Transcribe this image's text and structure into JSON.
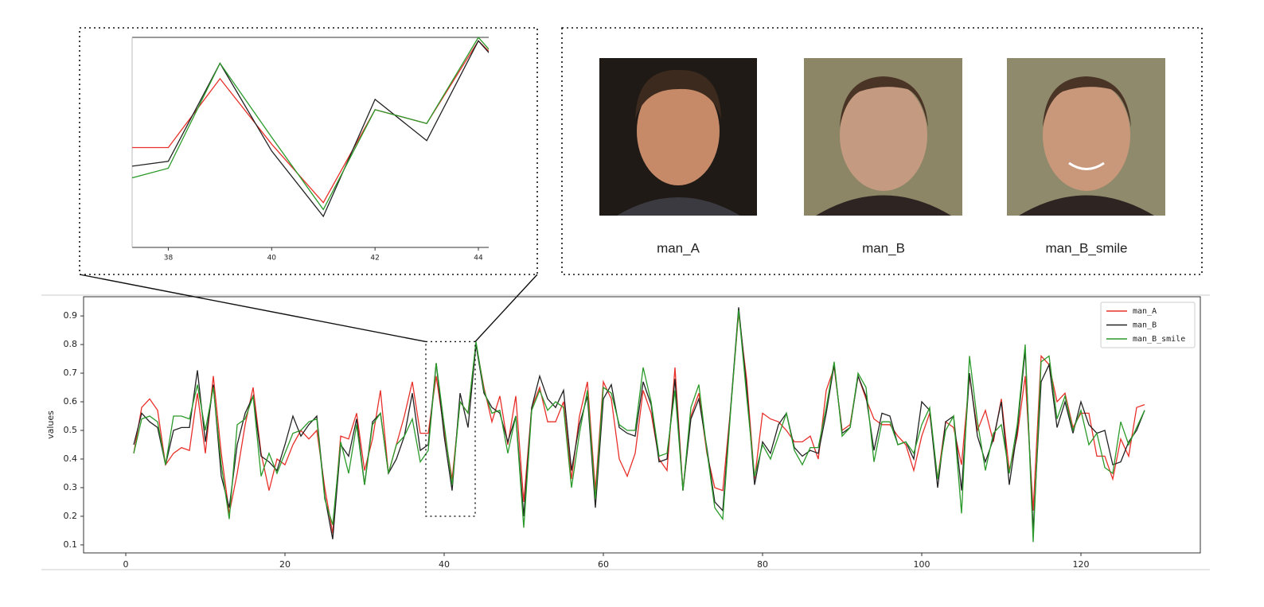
{
  "chart_data": {
    "type": "line",
    "ylabel": "values",
    "x": [
      1,
      2,
      3,
      4,
      5,
      6,
      7,
      8,
      9,
      10,
      11,
      12,
      13,
      14,
      15,
      16,
      17,
      18,
      19,
      20,
      21,
      22,
      23,
      24,
      25,
      26,
      27,
      28,
      29,
      30,
      31,
      32,
      33,
      34,
      35,
      36,
      37,
      38,
      39,
      40,
      41,
      42,
      43,
      44,
      45,
      46,
      47,
      48,
      49,
      50,
      51,
      52,
      53,
      54,
      55,
      56,
      57,
      58,
      59,
      60,
      61,
      62,
      63,
      64,
      65,
      66,
      67,
      68,
      69,
      70,
      71,
      72,
      73,
      74,
      75,
      76,
      77,
      78,
      79,
      80,
      81,
      82,
      83,
      84,
      85,
      86,
      87,
      88,
      89,
      90,
      91,
      92,
      93,
      94,
      95,
      96,
      97,
      98,
      99,
      100,
      101,
      102,
      103,
      104,
      105,
      106,
      107,
      108,
      109,
      110,
      111,
      112,
      113,
      114,
      115,
      116,
      117,
      118,
      119,
      120,
      121,
      122,
      123,
      124,
      125,
      126,
      127,
      128
    ],
    "series": [
      {
        "name": "man_A",
        "color": "#e8302a",
        "values": [
          0.42,
          0.58,
          0.61,
          0.57,
          0.38,
          0.42,
          0.44,
          0.43,
          0.63,
          0.42,
          0.69,
          0.42,
          0.21,
          0.35,
          0.52,
          0.65,
          0.42,
          0.29,
          0.4,
          0.38,
          0.45,
          0.5,
          0.47,
          0.5,
          0.3,
          0.14,
          0.48,
          0.47,
          0.56,
          0.36,
          0.47,
          0.64,
          0.35,
          0.45,
          0.55,
          0.67,
          0.49,
          0.49,
          0.69,
          0.5,
          0.33,
          0.6,
          0.56,
          0.8,
          0.65,
          0.53,
          0.62,
          0.45,
          0.62,
          0.25,
          0.58,
          0.65,
          0.53,
          0.53,
          0.6,
          0.33,
          0.55,
          0.67,
          0.29,
          0.67,
          0.61,
          0.4,
          0.34,
          0.42,
          0.64,
          0.56,
          0.4,
          0.36,
          0.72,
          0.29,
          0.55,
          0.63,
          0.42,
          0.3,
          0.29,
          0.58,
          0.91,
          0.68,
          0.33,
          0.56,
          0.54,
          0.53,
          0.5,
          0.46,
          0.46,
          0.48,
          0.4,
          0.64,
          0.72,
          0.5,
          0.52,
          0.69,
          0.61,
          0.54,
          0.52,
          0.52,
          0.48,
          0.45,
          0.36,
          0.48,
          0.56,
          0.33,
          0.53,
          0.51,
          0.38,
          0.69,
          0.5,
          0.57,
          0.46,
          0.61,
          0.36,
          0.48,
          0.69,
          0.22,
          0.76,
          0.73,
          0.6,
          0.63,
          0.51,
          0.56,
          0.56,
          0.41,
          0.41,
          0.33,
          0.47,
          0.41,
          0.58,
          0.59
        ]
      },
      {
        "name": "man_B",
        "color": "#222222",
        "values": [
          0.45,
          0.56,
          0.53,
          0.51,
          0.38,
          0.5,
          0.51,
          0.51,
          0.71,
          0.46,
          0.66,
          0.34,
          0.23,
          0.45,
          0.56,
          0.62,
          0.41,
          0.39,
          0.36,
          0.45,
          0.55,
          0.48,
          0.52,
          0.55,
          0.27,
          0.12,
          0.45,
          0.41,
          0.54,
          0.31,
          0.53,
          0.56,
          0.35,
          0.4,
          0.48,
          0.63,
          0.43,
          0.45,
          0.735,
          0.48,
          0.29,
          0.63,
          0.51,
          0.8,
          0.63,
          0.58,
          0.56,
          0.46,
          0.55,
          0.2,
          0.58,
          0.69,
          0.61,
          0.58,
          0.64,
          0.36,
          0.52,
          0.62,
          0.23,
          0.61,
          0.66,
          0.51,
          0.49,
          0.48,
          0.67,
          0.59,
          0.39,
          0.4,
          0.68,
          0.29,
          0.54,
          0.61,
          0.44,
          0.25,
          0.22,
          0.58,
          0.93,
          0.65,
          0.31,
          0.46,
          0.42,
          0.52,
          0.56,
          0.44,
          0.41,
          0.43,
          0.42,
          0.56,
          0.73,
          0.49,
          0.51,
          0.69,
          0.62,
          0.43,
          0.56,
          0.55,
          0.45,
          0.46,
          0.4,
          0.6,
          0.57,
          0.3,
          0.53,
          0.55,
          0.29,
          0.7,
          0.48,
          0.39,
          0.47,
          0.6,
          0.31,
          0.5,
          0.78,
          0.15,
          0.67,
          0.73,
          0.51,
          0.6,
          0.49,
          0.6,
          0.52,
          0.49,
          0.5,
          0.38,
          0.39,
          0.46,
          0.5,
          0.57
        ]
      },
      {
        "name": "man_B_smile",
        "color": "#2a9a2a",
        "values": [
          0.42,
          0.54,
          0.55,
          0.53,
          0.38,
          0.55,
          0.55,
          0.54,
          0.66,
          0.5,
          0.65,
          0.38,
          0.19,
          0.52,
          0.54,
          0.62,
          0.34,
          0.42,
          0.35,
          0.42,
          0.49,
          0.5,
          0.53,
          0.54,
          0.26,
          0.17,
          0.46,
          0.35,
          0.52,
          0.31,
          0.52,
          0.56,
          0.35,
          0.45,
          0.48,
          0.54,
          0.39,
          0.43,
          0.735,
          0.52,
          0.31,
          0.6,
          0.56,
          0.81,
          0.64,
          0.56,
          0.57,
          0.42,
          0.55,
          0.16,
          0.57,
          0.64,
          0.57,
          0.6,
          0.58,
          0.3,
          0.49,
          0.64,
          0.26,
          0.65,
          0.63,
          0.52,
          0.5,
          0.5,
          0.72,
          0.6,
          0.41,
          0.42,
          0.64,
          0.29,
          0.58,
          0.66,
          0.43,
          0.23,
          0.19,
          0.57,
          0.92,
          0.62,
          0.34,
          0.45,
          0.4,
          0.48,
          0.56,
          0.43,
          0.38,
          0.44,
          0.44,
          0.58,
          0.74,
          0.48,
          0.51,
          0.7,
          0.65,
          0.39,
          0.53,
          0.53,
          0.45,
          0.46,
          0.42,
          0.52,
          0.58,
          0.33,
          0.5,
          0.55,
          0.21,
          0.76,
          0.53,
          0.36,
          0.49,
          0.52,
          0.35,
          0.52,
          0.8,
          0.11,
          0.74,
          0.76,
          0.54,
          0.62,
          0.5,
          0.57,
          0.45,
          0.49,
          0.37,
          0.35,
          0.53,
          0.45,
          0.51,
          0.57
        ]
      }
    ],
    "xlim": [
      -5.3,
      135
    ],
    "ylim": [
      0.072,
      0.967
    ],
    "xticks": [
      0,
      20,
      40,
      60,
      80,
      100,
      120
    ],
    "yticks": [
      0.1,
      0.2,
      0.3,
      0.4,
      0.5,
      0.6,
      0.7,
      0.8,
      0.9
    ],
    "legend": "upper right",
    "zoom": {
      "xlim": [
        37.3,
        44.2
      ],
      "ylim": [
        0.2,
        0.81
      ],
      "xticks": [
        38,
        40,
        42,
        44
      ]
    }
  },
  "images": [
    {
      "label": "man_A"
    },
    {
      "label": "man_B"
    },
    {
      "label": "man_B_smile"
    }
  ]
}
